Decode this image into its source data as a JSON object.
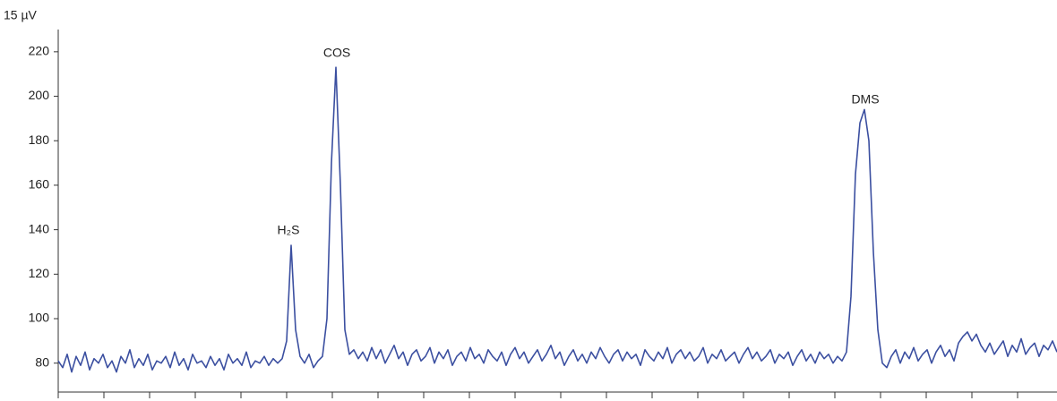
{
  "chart_data": {
    "type": "line",
    "title": "15 µV",
    "color": "#3b4fa0",
    "ylim": [
      67,
      230
    ],
    "yticks": [
      80,
      100,
      120,
      140,
      160,
      180,
      200,
      220
    ],
    "annotations": [
      "H₂S",
      "COS",
      "DMS"
    ],
    "values": [
      81,
      78,
      84,
      76,
      83,
      79,
      85,
      77,
      82,
      80,
      84,
      78,
      81,
      76,
      83,
      80,
      86,
      78,
      82,
      79,
      84,
      77,
      81,
      80,
      83,
      78,
      85,
      79,
      82,
      77,
      84,
      80,
      81,
      78,
      83,
      79,
      82,
      77,
      84,
      80,
      82,
      79,
      85,
      78,
      81,
      80,
      83,
      79,
      82,
      80,
      82,
      90,
      133,
      95,
      83,
      80,
      84,
      78,
      81,
      83,
      100,
      170,
      213,
      160,
      95,
      84,
      86,
      82,
      85,
      81,
      87,
      82,
      86,
      80,
      84,
      88,
      82,
      85,
      79,
      84,
      86,
      81,
      83,
      87,
      80,
      85,
      82,
      86,
      79,
      83,
      85,
      81,
      87,
      82,
      84,
      80,
      86,
      83,
      81,
      85,
      79,
      84,
      87,
      82,
      85,
      80,
      83,
      86,
      81,
      84,
      88,
      82,
      85,
      79,
      83,
      86,
      81,
      84,
      80,
      85,
      82,
      87,
      83,
      80,
      84,
      86,
      81,
      85,
      82,
      84,
      79,
      86,
      83,
      81,
      85,
      82,
      87,
      80,
      84,
      86,
      82,
      85,
      81,
      83,
      87,
      80,
      84,
      82,
      86,
      81,
      83,
      85,
      80,
      84,
      87,
      82,
      85,
      81,
      83,
      86,
      80,
      84,
      82,
      85,
      79,
      83,
      86,
      81,
      84,
      80,
      85,
      82,
      84,
      80,
      83,
      81,
      85,
      110,
      165,
      188,
      194,
      180,
      130,
      95,
      80,
      78,
      83,
      86,
      80,
      85,
      82,
      87,
      81,
      84,
      86,
      80,
      85,
      88,
      83,
      86,
      81,
      89,
      92,
      94,
      90,
      93,
      88,
      85,
      89,
      84,
      87,
      90,
      83,
      88,
      85,
      91,
      84,
      87,
      89,
      83,
      88,
      86,
      90,
      85
    ]
  }
}
